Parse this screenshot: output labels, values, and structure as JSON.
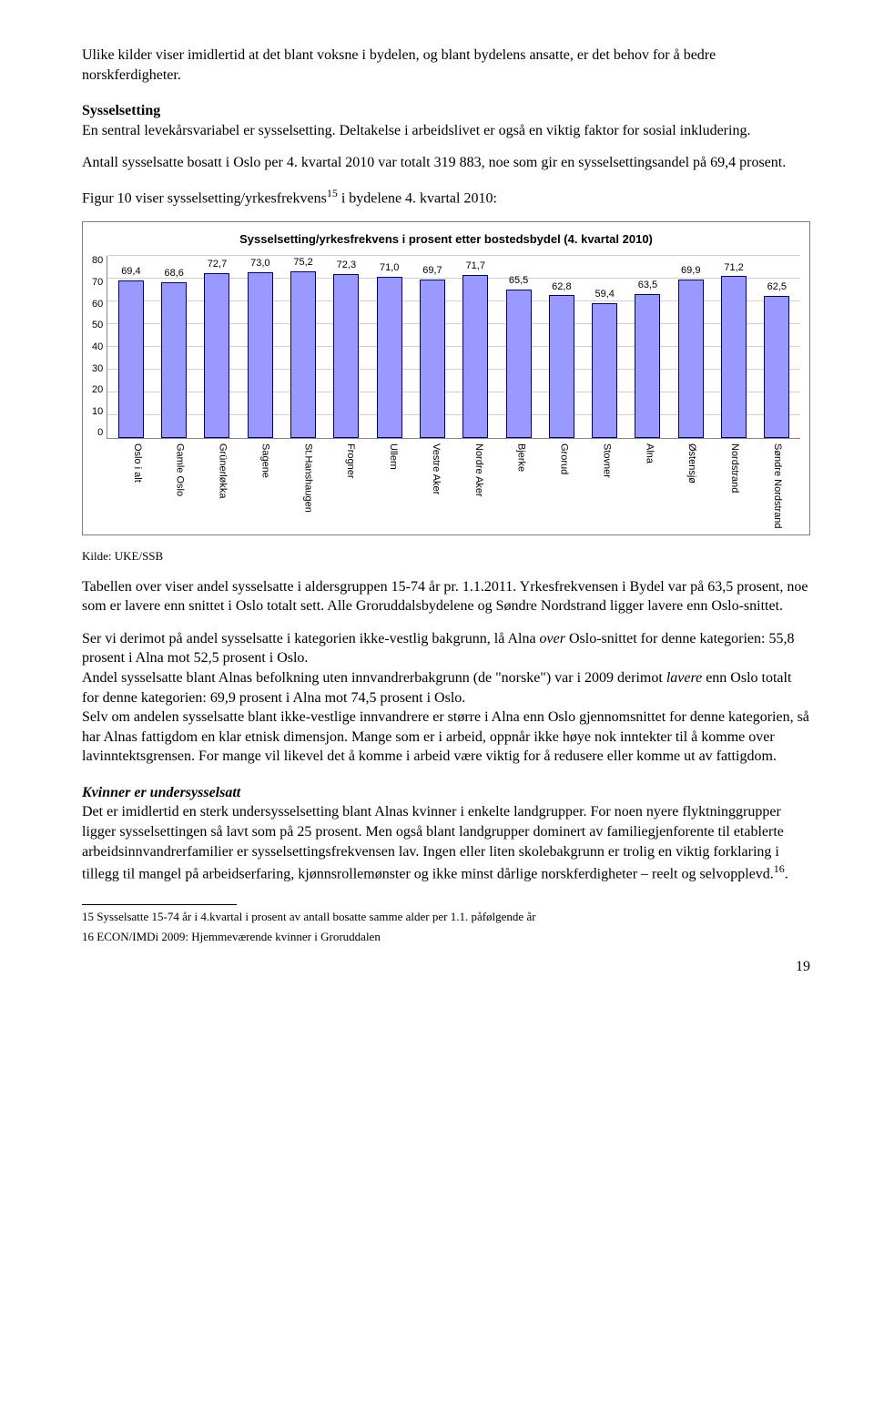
{
  "para1": "Ulike kilder viser imidlertid at det blant voksne i bydelen, og blant bydelens ansatte, er det behov for å bedre norskferdigheter.",
  "sec_sysselsetting": "Sysselsetting",
  "para2a": "En sentral levekårsvariabel er sysselsetting. Deltakelse i arbeidslivet er også en viktig faktor for sosial inkludering.",
  "para2b": "Antall sysselsatte bosatt i Oslo per 4. kvartal 2010 var totalt 319 883, noe som gir en sysselsettingsandel på 69,4 prosent.",
  "para3_pre": "Figur 10 viser sysselsetting/yrkesfrekvens",
  "para3_sup": "15",
  "para3_post": " i bydelene 4. kvartal 2010:",
  "chart": {
    "type": "bar",
    "title": "Sysselsetting/yrkesfrekvens i prosent etter bostedsbydel (4. kvartal 2010)",
    "ylim": [
      0,
      80
    ],
    "ytick_step": 10,
    "bar_color": "#9999ff",
    "bar_border": "#000080",
    "grid_color": "#d0d0d0",
    "background_color": "#ffffff",
    "label_fontsize": 11,
    "title_fontsize": 13,
    "categories": [
      "Oslo i alt",
      "Gamle Oslo",
      "Grünerløkka",
      "Sagene",
      "St.Hanshaugen",
      "Frogner",
      "Ullern",
      "Vestre Aker",
      "Nordre Aker",
      "Bjerke",
      "Grorud",
      "Stovner",
      "Alna",
      "Østensjø",
      "Nordstrand",
      "Søndre Nordstrand"
    ],
    "values": [
      69.4,
      68.6,
      72.7,
      73.0,
      75.2,
      72.3,
      71.0,
      69.7,
      71.7,
      65.5,
      62.8,
      59.4,
      63.5,
      69.9,
      71.2,
      62.5
    ],
    "values_txt": [
      "69,4",
      "68,6",
      "72,7",
      "73,0",
      "75,2",
      "72,3",
      "71,0",
      "69,7",
      "71,7",
      "65,5",
      "62,8",
      "59,4",
      "63,5",
      "69,9",
      "71,2",
      "62,5"
    ]
  },
  "source": "Kilde: UKE/SSB",
  "para4": "Tabellen over viser andel sysselsatte i aldersgruppen 15-74 år pr. 1.1.2011. Yrkesfrekvensen i Bydel var på 63,5 prosent, noe som er lavere enn snittet i Oslo totalt sett. Alle Groruddalsbydelene og Søndre Nordstrand ligger lavere enn Oslo-snittet.",
  "para5a": "Ser vi derimot på andel sysselsatte i kategorien ikke-vestlig bakgrunn, lå Alna ",
  "para5a_it": "over",
  "para5a2": " Oslo-snittet for denne kategorien: 55,8 prosent i Alna mot 52,5 prosent i Oslo.",
  "para5b": "Andel sysselsatte blant Alnas befolkning uten innvandrerbakgrunn (de \"norske\") var i 2009 derimot ",
  "para5b_it": "lavere",
  "para5b2": " enn Oslo totalt for denne kategorien: 69,9 prosent i Alna mot 74,5 prosent i Oslo.",
  "para5c": "Selv om andelen sysselsatte blant ikke-vestlige innvandrere er større i Alna enn Oslo gjennomsnittet for denne kategorien, så har Alnas fattigdom en klar etnisk dimensjon. Mange som er i arbeid, oppnår ikke høye nok inntekter til å komme over lavinntektsgrensen. For mange vil likevel det å komme i arbeid være viktig for å redusere eller komme ut av fattigdom.",
  "sec_kvinner": "Kvinner er undersysselsatt",
  "para6a": "Det er imidlertid en sterk undersysselsetting blant Alnas kvinner i enkelte landgrupper. For noen nyere flyktninggrupper ligger sysselsettingen så lavt som på 25 prosent. Men også blant landgrupper dominert av familiegjenforente til etablerte arbeidsinnvandrerfamilier er sysselsettingsfrekvensen lav. Ingen eller liten skolebakgrunn er trolig en viktig forklaring i tillegg til mangel på arbeidserfaring, kjønnsrollemønster og ikke minst dårlige norskferdigheter – reelt og selvopplevd.",
  "para6_sup": "16",
  "para6_post": ".",
  "footnote15": "15 Sysselsatte 15-74 år i 4.kvartal i prosent av antall bosatte samme alder per 1.1. påfølgende år",
  "footnote16": "16 ECON/IMDi 2009: Hjemmeværende kvinner i Groruddalen",
  "page_number": "19"
}
